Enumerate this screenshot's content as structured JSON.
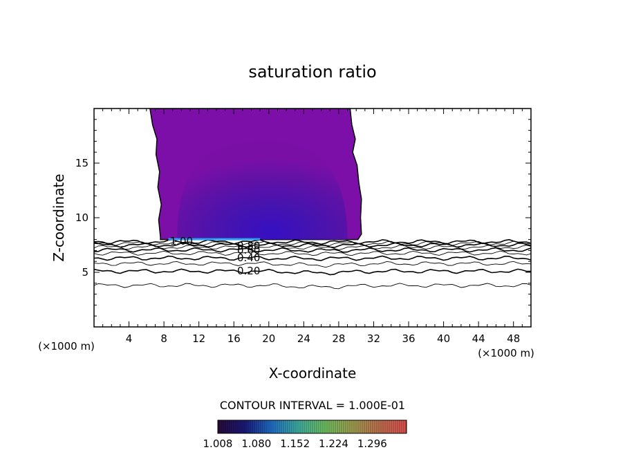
{
  "chart_data": {
    "type": "contour",
    "title": "saturation ratio",
    "xlabel": "X-coordinate",
    "ylabel": "Z-coordinate",
    "x_unit_left": "(×1000 m)",
    "x_unit_right": "(×1000 m)",
    "xlim": [
      0,
      50
    ],
    "ylim": [
      0,
      20
    ],
    "x_ticks": [
      4,
      8,
      12,
      16,
      20,
      24,
      28,
      32,
      36,
      40,
      44,
      48
    ],
    "y_ticks": [
      5,
      10,
      15
    ],
    "contour_interval_text": "CONTOUR INTERVAL = 1.000E-01",
    "contour_labels": [
      {
        "text": "1.00",
        "x": 10.0,
        "z": 7.9
      },
      {
        "text": "0.80",
        "x": 17.7,
        "z": 7.5
      },
      {
        "text": "0.60",
        "x": 17.7,
        "z": 7.1
      },
      {
        "text": "0.40",
        "x": 17.7,
        "z": 6.4
      },
      {
        "text": "0.20",
        "x": 17.7,
        "z": 5.2
      }
    ],
    "contour_lines": [
      {
        "level": 0.1,
        "z": 3.8
      },
      {
        "level": 0.2,
        "z": 5.1
      },
      {
        "level": 0.3,
        "z": 5.8
      },
      {
        "level": 0.4,
        "z": 6.3
      },
      {
        "level": 0.5,
        "z": 6.75
      },
      {
        "level": 0.6,
        "z": 7.05
      },
      {
        "level": 0.7,
        "z": 7.3
      },
      {
        "level": 0.8,
        "z": 7.5
      },
      {
        "level": 0.9,
        "z": 7.65
      },
      {
        "level": 1.0,
        "z": 7.8
      }
    ],
    "supersaturated_region": {
      "z_bottom": 8.0,
      "z_top": 20,
      "left_boundary": [
        [
          6.4,
          20
        ],
        [
          6.7,
          18.5
        ],
        [
          7.2,
          17.2
        ],
        [
          7.1,
          15.8
        ],
        [
          7.5,
          14.2
        ],
        [
          7.3,
          12.8
        ],
        [
          7.7,
          11.2
        ],
        [
          7.4,
          9.8
        ],
        [
          7.6,
          8.2
        ]
      ],
      "right_boundary": [
        [
          29.3,
          20
        ],
        [
          29.5,
          18.5
        ],
        [
          29.9,
          17.2
        ],
        [
          29.6,
          16.0
        ],
        [
          30.1,
          14.8
        ],
        [
          30.3,
          13.2
        ],
        [
          30.6,
          11.7
        ],
        [
          30.5,
          10.0
        ],
        [
          30.6,
          8.5
        ],
        [
          30.2,
          8.0
        ]
      ]
    },
    "colorbar": {
      "min": 1.008,
      "max": 1.36,
      "tick_labels": [
        "1.008",
        "1.080",
        "1.152",
        "1.224",
        "1.296"
      ],
      "colors": [
        "#2a0a3a",
        "#1a1a7a",
        "#2070c8",
        "#40b0a0",
        "#70c060",
        "#a0a050",
        "#c07050",
        "#e05050"
      ]
    }
  }
}
